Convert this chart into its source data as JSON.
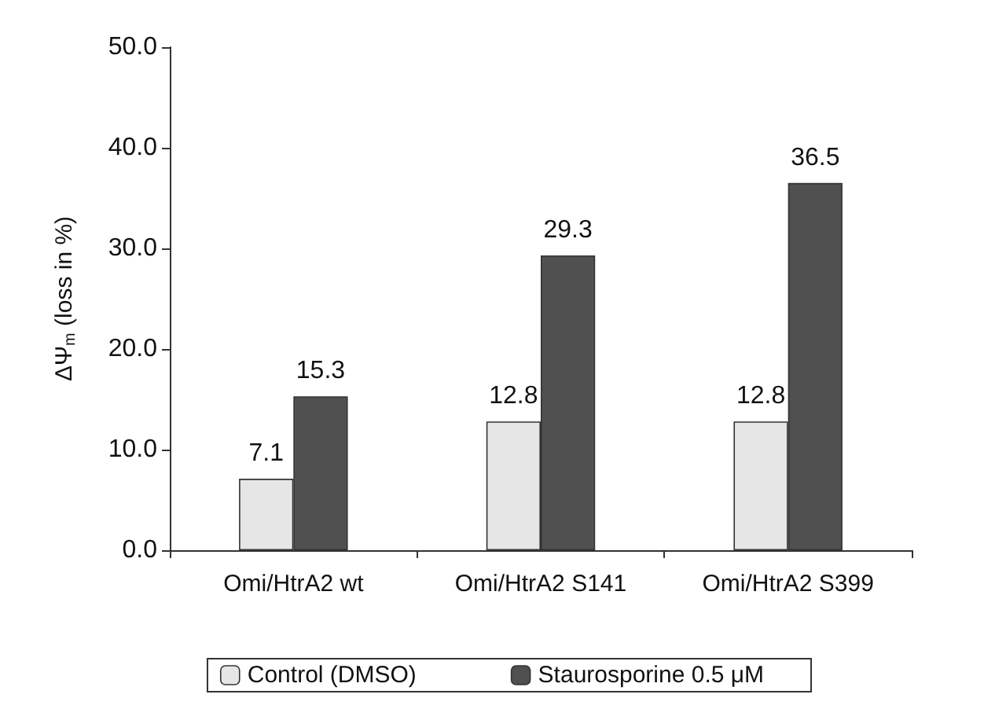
{
  "chart_data": {
    "type": "bar",
    "ylabel": "ΔΨ$_{m}$ (loss in %)",
    "categories": [
      "Omi/HtrA2 wt",
      "Omi/HtrA2 S141",
      "Omi/HtrA2 S399"
    ],
    "series": [
      {
        "name": "Control (DMSO)",
        "color": "#e6e6e6",
        "values": [
          7.1,
          12.8,
          12.8
        ]
      },
      {
        "name": "Staurosporine 0.5 μM",
        "color": "#505050",
        "values": [
          15.3,
          29.3,
          36.5
        ]
      }
    ],
    "ylim": [
      0,
      50
    ],
    "yticks": [
      {
        "value": 0,
        "label": "0.0"
      },
      {
        "value": 10,
        "label": "10.0"
      },
      {
        "value": 20,
        "label": "20.0"
      },
      {
        "value": 30,
        "label": "30.0"
      },
      {
        "value": 40,
        "label": "40.0"
      },
      {
        "value": 50,
        "label": "50.0"
      }
    ],
    "data_labels": true,
    "grid": false,
    "legend": "bottom"
  }
}
